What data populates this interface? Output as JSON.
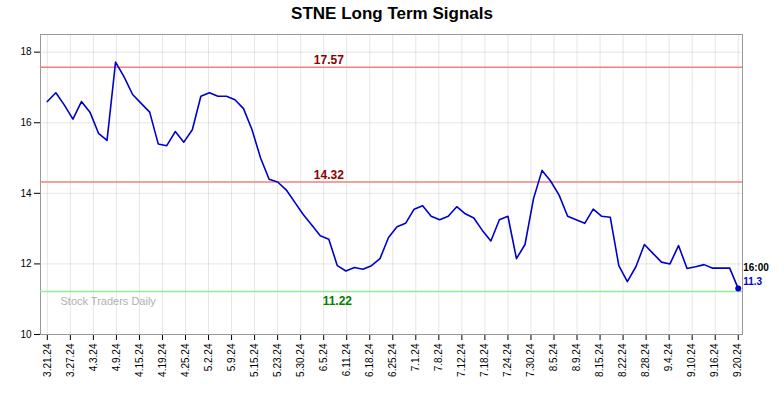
{
  "chart_data": {
    "type": "line",
    "title": "STNE Long Term Signals",
    "color": "#0000cc",
    "values": [
      16.6,
      16.85,
      16.5,
      16.1,
      16.6,
      16.3,
      15.7,
      15.5,
      17.72,
      17.3,
      16.8,
      16.55,
      16.3,
      15.4,
      15.35,
      15.75,
      15.45,
      15.8,
      16.75,
      16.85,
      16.75,
      16.75,
      16.65,
      16.4,
      15.8,
      15.0,
      14.4,
      14.32,
      14.1,
      13.75,
      13.4,
      13.1,
      12.8,
      12.7,
      11.95,
      11.8,
      11.9,
      11.85,
      11.95,
      12.15,
      12.75,
      13.05,
      13.15,
      13.55,
      13.65,
      13.35,
      13.25,
      13.35,
      13.62,
      13.42,
      13.3,
      12.95,
      12.65,
      13.25,
      13.35,
      12.15,
      12.55,
      13.85,
      14.65,
      14.35,
      13.95,
      13.35,
      13.25,
      13.15,
      13.55,
      13.35,
      13.32,
      11.95,
      11.5,
      11.92,
      12.55,
      12.3,
      12.05,
      12.0,
      12.52,
      11.87,
      11.92,
      11.98,
      11.88,
      11.88,
      11.88,
      11.3
    ],
    "xlim": [
      -0.8,
      81.5
    ],
    "xticks": [
      {
        "value": 0,
        "label": "3.21.24"
      },
      {
        "value": 2.7,
        "label": "3.27.24"
      },
      {
        "value": 5.4,
        "label": "4.3.24"
      },
      {
        "value": 8.1,
        "label": "4.9.24"
      },
      {
        "value": 10.8,
        "label": "4.15.24"
      },
      {
        "value": 13.5,
        "label": "4.19.24"
      },
      {
        "value": 16.2,
        "label": "4.25.24"
      },
      {
        "value": 18.9,
        "label": "5.2.24"
      },
      {
        "value": 21.6,
        "label": "5.9.24"
      },
      {
        "value": 24.3,
        "label": "5.15.24"
      },
      {
        "value": 27,
        "label": "5.23.24"
      },
      {
        "value": 29.7,
        "label": "5.30.24"
      },
      {
        "value": 32.4,
        "label": "6.5.24"
      },
      {
        "value": 35.1,
        "label": "6.11.24"
      },
      {
        "value": 37.8,
        "label": "6.18.24"
      },
      {
        "value": 40.5,
        "label": "6.25.24"
      },
      {
        "value": 43.2,
        "label": "7.1.24"
      },
      {
        "value": 45.9,
        "label": "7.8.24"
      },
      {
        "value": 48.6,
        "label": "7.12.24"
      },
      {
        "value": 51.3,
        "label": "7.18.24"
      },
      {
        "value": 54,
        "label": "7.24.24"
      },
      {
        "value": 56.7,
        "label": "7.30.24"
      },
      {
        "value": 59.4,
        "label": "8.5.24"
      },
      {
        "value": 62.1,
        "label": "8.9.24"
      },
      {
        "value": 64.8,
        "label": "8.15.24"
      },
      {
        "value": 67.5,
        "label": "8.22.24"
      },
      {
        "value": 70.2,
        "label": "8.28.24"
      },
      {
        "value": 72.9,
        "label": "9.4.24"
      },
      {
        "value": 75.6,
        "label": "9.10.24"
      },
      {
        "value": 78.3,
        "label": "9.16.24"
      },
      {
        "value": 81,
        "label": "9.20.24"
      }
    ],
    "ylim": [
      10,
      18.5
    ],
    "yticks": [
      10,
      12,
      14,
      16,
      18
    ],
    "grid": true,
    "hlines": [
      {
        "value": 17.57,
        "color": "#f08080"
      },
      {
        "value": 14.32,
        "color": "#f08080"
      },
      {
        "value": 11.22,
        "color": "#90ee90"
      }
    ],
    "annotations": [
      {
        "text": "17.57",
        "x": 33,
        "y": 17.57,
        "color": "#8b0000"
      },
      {
        "text": "14.32",
        "x": 33,
        "y": 14.32,
        "color": "#8b0000"
      },
      {
        "text": "11.22",
        "x": 34,
        "y": 11.22,
        "color": "#008000"
      },
      {
        "text": "16:00",
        "x": 81,
        "y": 11.3,
        "color": "#000000"
      },
      {
        "text": "11.3",
        "x": 81,
        "y": 11.3,
        "color": "#0000cc"
      },
      {
        "text": "Stock Traders Daily",
        "color": "#b0b0b0"
      }
    ]
  }
}
